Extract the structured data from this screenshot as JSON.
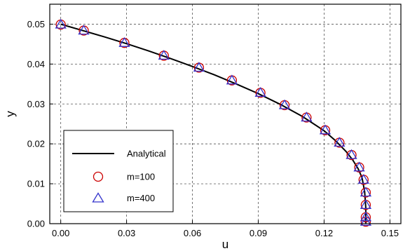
{
  "chart_data": {
    "type": "line",
    "title": "",
    "xlabel": "u",
    "ylabel": "y",
    "xlim": [
      -0.005,
      0.155
    ],
    "ylim": [
      0,
      0.055
    ],
    "x_ticks": [
      "0.00",
      "0.03",
      "0.06",
      "0.09",
      "0.12",
      "0.15"
    ],
    "y_ticks": [
      "0.00",
      "0.01",
      "0.02",
      "0.03",
      "0.04",
      "0.05"
    ],
    "grid": true,
    "legend_position": "bottom-left",
    "series": [
      {
        "name": "Analytical",
        "style": "line",
        "color": "#000000",
        "x": [
          0.0,
          0.01,
          0.02,
          0.03,
          0.04,
          0.05,
          0.06,
          0.07,
          0.08,
          0.09,
          0.1,
          0.11,
          0.12,
          0.125,
          0.13,
          0.133,
          0.1355,
          0.1373,
          0.1385,
          0.139,
          0.139
        ],
        "y": [
          0.05,
          0.0484,
          0.0468,
          0.0451,
          0.0433,
          0.0414,
          0.0394,
          0.0373,
          0.035,
          0.0326,
          0.0299,
          0.0269,
          0.0233,
          0.0209,
          0.0181,
          0.016,
          0.0138,
          0.0115,
          0.008,
          0.004,
          0.0
        ]
      },
      {
        "name": "m=100",
        "style": "circle",
        "color": "#cc0000",
        "x": [
          0.0,
          0.0105,
          0.029,
          0.047,
          0.063,
          0.078,
          0.091,
          0.102,
          0.112,
          0.1205,
          0.127,
          0.1325,
          0.136,
          0.138,
          0.139,
          0.139,
          0.139,
          0.139
        ],
        "y": [
          0.0499,
          0.0484,
          0.0453,
          0.0421,
          0.0391,
          0.0359,
          0.0328,
          0.0297,
          0.0266,
          0.0234,
          0.0203,
          0.0172,
          0.0141,
          0.011,
          0.0078,
          0.0047,
          0.0016,
          0.0005
        ]
      },
      {
        "name": "m=400",
        "style": "triangle",
        "color": "#3333cc",
        "x": [
          0.0,
          0.0105,
          0.029,
          0.047,
          0.063,
          0.078,
          0.091,
          0.102,
          0.112,
          0.1205,
          0.127,
          0.1325,
          0.136,
          0.138,
          0.139,
          0.139,
          0.139,
          0.139
        ],
        "y": [
          0.0499,
          0.0484,
          0.0453,
          0.0421,
          0.0391,
          0.0359,
          0.0328,
          0.0297,
          0.0266,
          0.0234,
          0.0203,
          0.0172,
          0.0141,
          0.011,
          0.0078,
          0.0047,
          0.0016,
          0.0005
        ]
      }
    ]
  }
}
